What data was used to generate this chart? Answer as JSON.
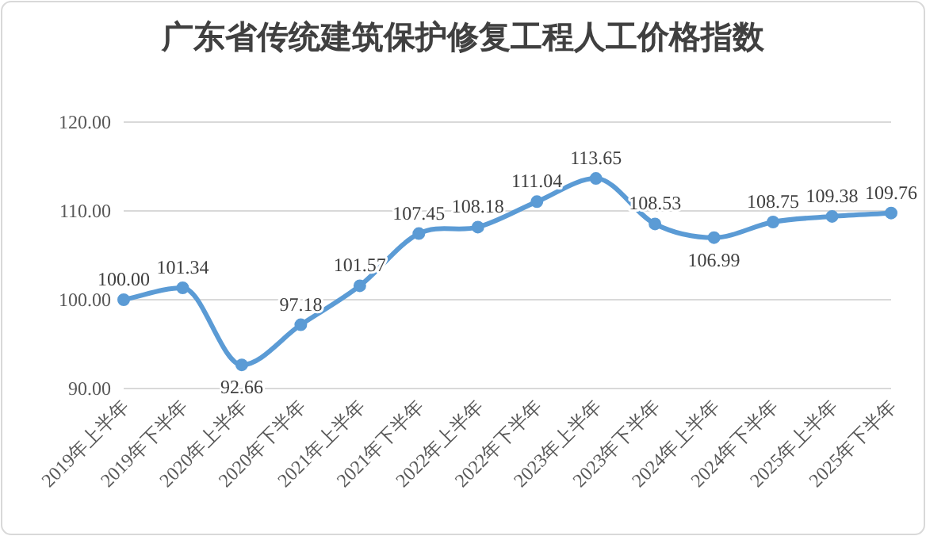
{
  "chart_data": {
    "type": "line",
    "title": "广东省传统建筑保护修复工程人工价格指数",
    "categories": [
      "2019年上半年",
      "2019年下半年",
      "2020年上半年",
      "2020年下半年",
      "2021年上半年",
      "2021年下半年",
      "2022年上半年",
      "2022年下半年",
      "2023年上半年",
      "2023年下半年",
      "2024年上半年",
      "2024年下半年",
      "2025年上半年",
      "2025年下半年"
    ],
    "series": [
      {
        "color": "#5b9bd5",
        "values": [
          100.0,
          101.34,
          92.66,
          97.18,
          101.57,
          107.45,
          108.18,
          111.04,
          113.65,
          108.53,
          106.99,
          108.75,
          109.38,
          109.76
        ],
        "value_labels": [
          "100.00",
          "101.34",
          "92.66",
          "97.18",
          "101.57",
          "107.45",
          "108.18",
          "111.04",
          "113.65",
          "108.53",
          "106.99",
          "108.75",
          "109.38",
          "109.76"
        ]
      }
    ],
    "ylim": [
      90,
      120
    ],
    "yticks": [
      {
        "value": 90,
        "label": "90.00"
      },
      {
        "value": 100,
        "label": "100.00"
      },
      {
        "value": 110,
        "label": "110.00"
      },
      {
        "value": 120,
        "label": "120.00"
      }
    ],
    "grid": "y",
    "marker": "circle",
    "line_style": "solid"
  }
}
